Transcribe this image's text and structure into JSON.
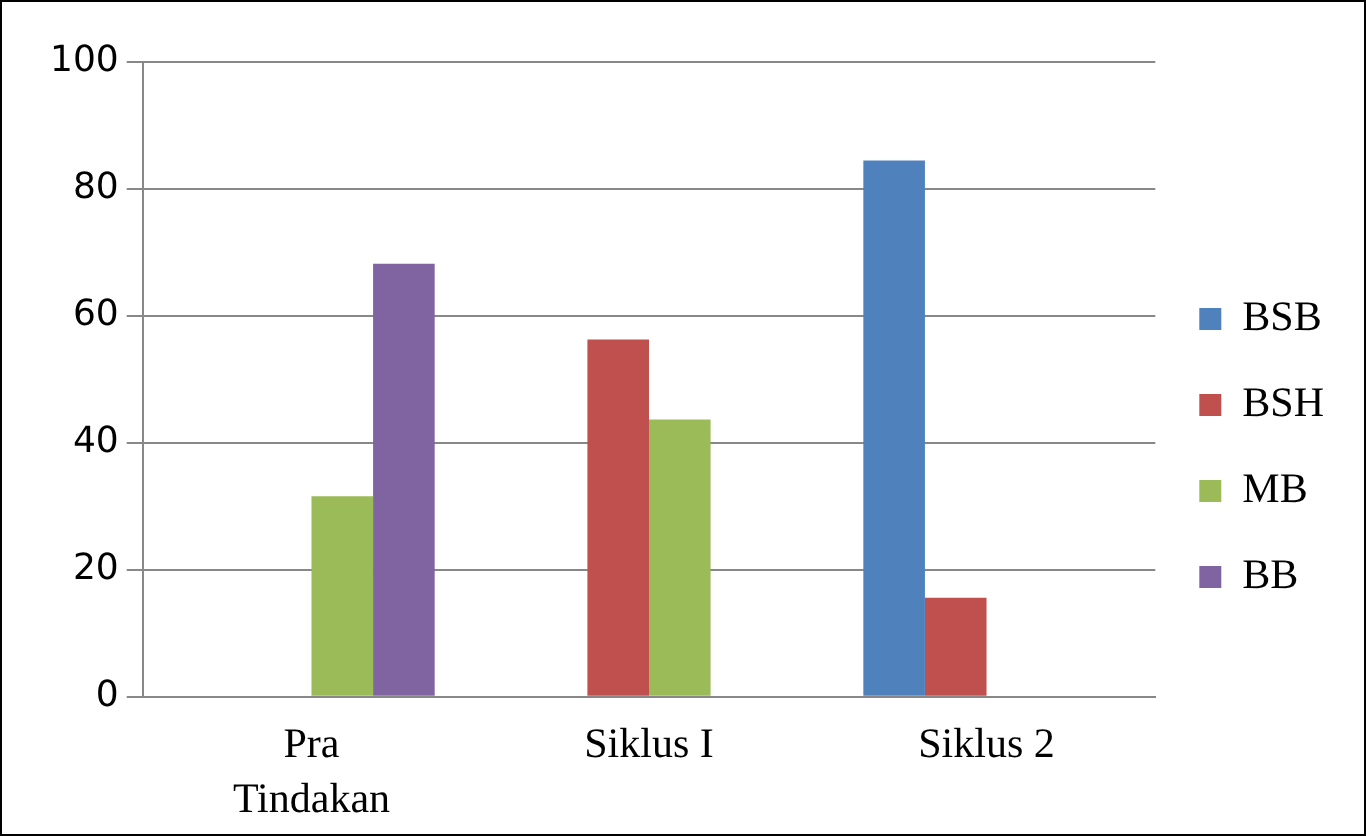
{
  "chart_data": {
    "type": "bar",
    "categories": [
      "Pra Tindakan",
      "Siklus I",
      "Siklus 2"
    ],
    "series": [
      {
        "name": "BSB",
        "color": "#4f81bd",
        "values": [
          0,
          0,
          84.5
        ]
      },
      {
        "name": "BSH",
        "color": "#c0504d",
        "values": [
          0,
          56.3,
          15.6
        ]
      },
      {
        "name": "MB",
        "color": "#9bbb59",
        "values": [
          31.6,
          43.7,
          0
        ]
      },
      {
        "name": "BB",
        "color": "#8064a2",
        "values": [
          68.2,
          0,
          0
        ]
      }
    ],
    "ylim": [
      0,
      100
    ],
    "yticks": [
      0,
      20,
      40,
      60,
      80,
      100
    ],
    "grid": "y",
    "legend": "right"
  }
}
